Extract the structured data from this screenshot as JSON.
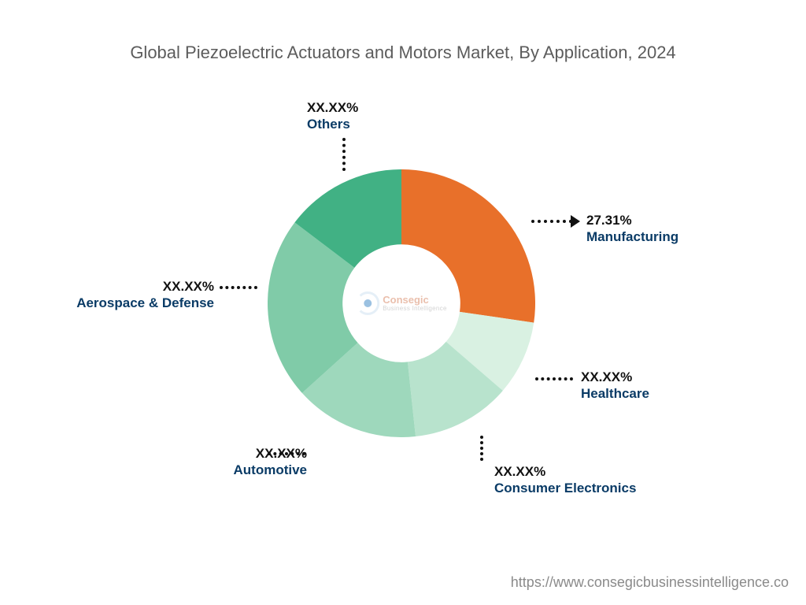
{
  "title": "Global Piezoelectric Actuators and Motors Market, By Application, 2024",
  "source_url": "https://www.consegicbusinessintelligence.co",
  "logo": {
    "line1": "Consegic",
    "line2": "Business Intelligence"
  },
  "chart": {
    "type": "doughnut",
    "background_color": "#ffffff",
    "inner_radius_pct": 44,
    "title_fontsize": 22,
    "title_color": "#5c5c5c",
    "label_pct_color": "#111111",
    "label_name_color": "#0a3b66",
    "label_fontsize": 17,
    "segments": [
      {
        "name": "Manufacturing",
        "value_label": "27.31%",
        "pct": 27.31,
        "color": "#e8702a",
        "highlighted": true
      },
      {
        "name": "Healthcare",
        "value_label": "XX.XX%",
        "pct": 9.0,
        "color": "#d9f1e2"
      },
      {
        "name": "Consumer Electronics",
        "value_label": "XX.XX%",
        "pct": 12.0,
        "color": "#b8e3cd"
      },
      {
        "name": "Automotive",
        "value_label": "XX.XX%",
        "pct": 15.0,
        "color": "#9ed8bc"
      },
      {
        "name": "Aerospace & Defense",
        "value_label": "XX.XX%",
        "pct": 22.0,
        "color": "#80cba8"
      },
      {
        "name": "Others",
        "value_label": "XX.XX%",
        "pct": 14.69,
        "color": "#41b184"
      }
    ]
  }
}
